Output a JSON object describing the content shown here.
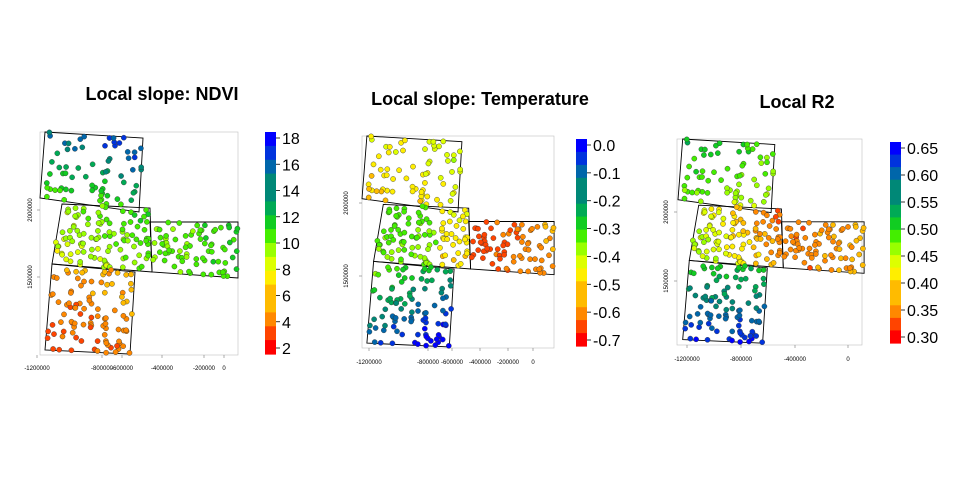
{
  "panels": [
    {
      "title": "Local slope: NDVI",
      "legend_labels": [
        "18",
        "16",
        "14",
        "12",
        "10",
        "8",
        "6",
        "4",
        "2"
      ],
      "x_ticks": [
        "-1200000",
        "-800000",
        "-600000",
        "-400000",
        "-200000",
        "0"
      ],
      "y_ticks": [
        "2000000",
        "1500000"
      ]
    },
    {
      "title": "Local slope: Temperature",
      "legend_labels": [
        "0.0",
        "-0.1",
        "-0.2",
        "-0.3",
        "-0.4",
        "-0.5",
        "-0.6",
        "-0.7"
      ],
      "x_ticks": [
        "-1200000",
        "-800000",
        "-600000",
        "-400000",
        "-200000",
        "0"
      ],
      "y_ticks": [
        "2000000",
        "1500000"
      ]
    },
    {
      "title": "Local R2",
      "legend_labels": [
        "0.65",
        "0.60",
        "0.55",
        "0.50",
        "0.45",
        "0.40",
        "0.35",
        "0.30"
      ],
      "x_ticks": [
        "-1200000",
        "-800000",
        "-400000",
        "0"
      ],
      "y_ticks": [
        "2000000",
        "1500000"
      ]
    }
  ],
  "color_ramp": [
    "#ff0000",
    "#ff4400",
    "#ff8800",
    "#ffbb00",
    "#ffee00",
    "#ddff00",
    "#99ff00",
    "#44ee00",
    "#11cc22",
    "#00aa55",
    "#008877",
    "#0066aa",
    "#0033dd",
    "#0000ff"
  ]
}
